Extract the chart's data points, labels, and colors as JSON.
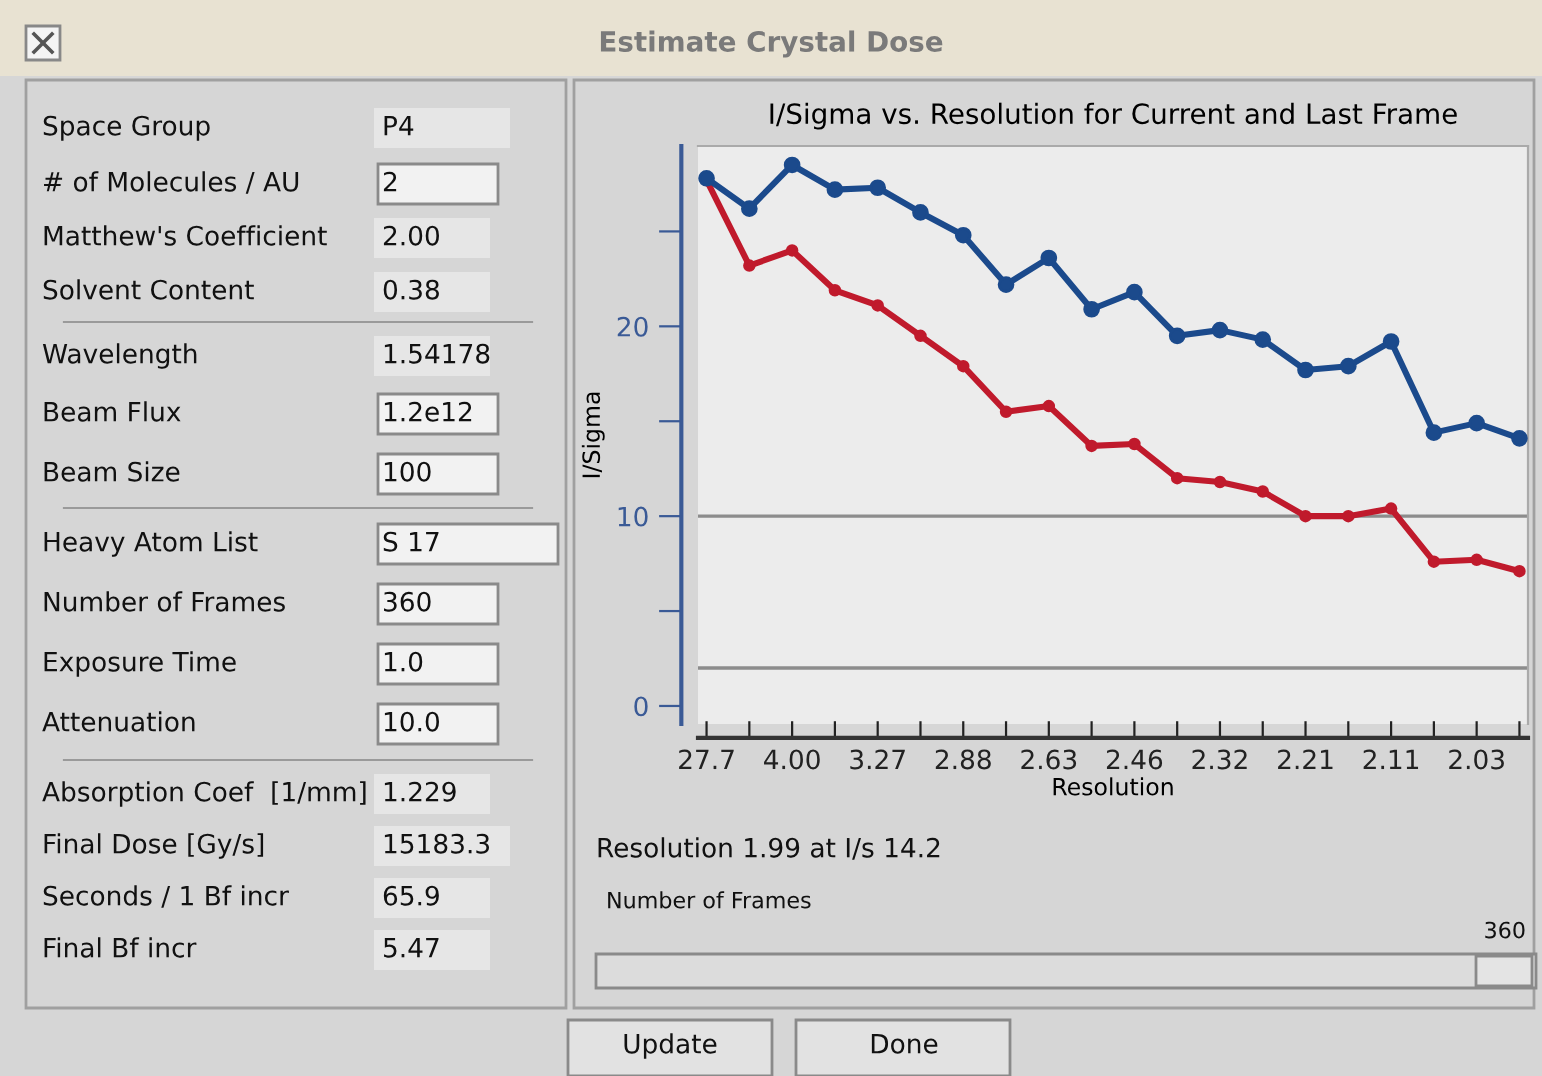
{
  "chart_data": [
    {
      "type": "other",
      "title": "Estimate Crystal Dose",
      "annotations": [
        "Space Group",
        "P4",
        "# of Molecules / AU",
        "2",
        "Matthew's Coefficient",
        "2.00",
        "Solvent Content",
        "0.38",
        "Wavelength",
        "1.54178",
        "Beam Flux",
        "1.2e12",
        "Beam Size",
        "100",
        "Heavy Atom List",
        "S 17",
        "Number of Frames",
        "360",
        "Exposure Time",
        "1.0",
        "Attenuation",
        "10.0",
        "Absorption Coef  [1/mm]",
        "1.229",
        "Final Dose [Gy/s]",
        "15183.3",
        "Seconds / 1 Bf incr",
        "65.9",
        "Final Bf incr",
        "5.47"
      ]
    },
    {
      "type": "line",
      "title": "I/Sigma vs. Resolution for Current and Last Frame",
      "xlabel": "Resolution",
      "ylabel": "I/Sigma",
      "categories": [
        "27.7",
        null,
        "4.00",
        null,
        "3.27",
        null,
        "2.88",
        null,
        "2.63",
        null,
        "2.46",
        null,
        "2.32",
        null,
        "2.21",
        null,
        "2.11",
        null,
        "2.03",
        null
      ],
      "series": [
        {
          "color": "#1b4a8c",
          "values": [
            27.8,
            26.2,
            28.5,
            27.2,
            27.3,
            26.0,
            24.8,
            22.2,
            23.6,
            20.9,
            21.8,
            19.5,
            19.8,
            19.3,
            17.7,
            17.9,
            19.2,
            14.4,
            14.9,
            14.1
          ]
        },
        {
          "color": "#c01a2c",
          "values": [
            27.7,
            23.2,
            24.0,
            21.9,
            21.1,
            19.5,
            17.9,
            15.5,
            15.8,
            13.7,
            13.8,
            12.0,
            11.8,
            11.3,
            10.0,
            10.0,
            10.4,
            7.6,
            7.7,
            7.1
          ]
        }
      ],
      "ylim": [
        -0.95,
        29.5
      ],
      "yticks": [
        0,
        {
          "value": 5,
          "label": null
        },
        10,
        {
          "value": 15,
          "label": null
        },
        20,
        {
          "value": 25,
          "label": null
        }
      ],
      "ref_lines": [
        {
          "axis": "y",
          "value": 10,
          "color": "#8c8c8c"
        },
        {
          "axis": "y",
          "value": 2,
          "color": "#8c8c8c"
        }
      ],
      "marker": "circle",
      "line_style": "solid",
      "grid": false,
      "legend": false,
      "annotations": [
        "Resolution 1.99 at I/s 14.2"
      ]
    },
    {
      "type": "other",
      "annotations": [
        "Number of Frames",
        "360",
        "Update",
        "Done"
      ]
    }
  ]
}
